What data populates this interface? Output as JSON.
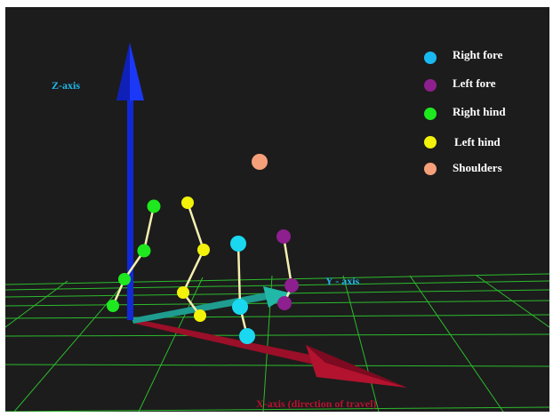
{
  "axes": {
    "z_label": "Z-axis",
    "y_label": "Y - axis",
    "x_label": "X-axis (direction of travel)"
  },
  "legend": [
    {
      "label": "Right fore",
      "color": "#1ab8f0"
    },
    {
      "label": "Left fore",
      "color": "#8e1f8e"
    },
    {
      "label": "Right hind",
      "color": "#1ee81e"
    },
    {
      "label": "Left hind",
      "color": "#f2f20a"
    },
    {
      "label": "Shoulders",
      "color": "#f5a07a"
    }
  ],
  "colors": {
    "background": "#1c1c1c",
    "grid": "#2fd62f",
    "z_axis": "#1530f0",
    "y_axis": "#20b8a8",
    "x_axis": "#a0102a",
    "segment": "#f5f0b0"
  }
}
